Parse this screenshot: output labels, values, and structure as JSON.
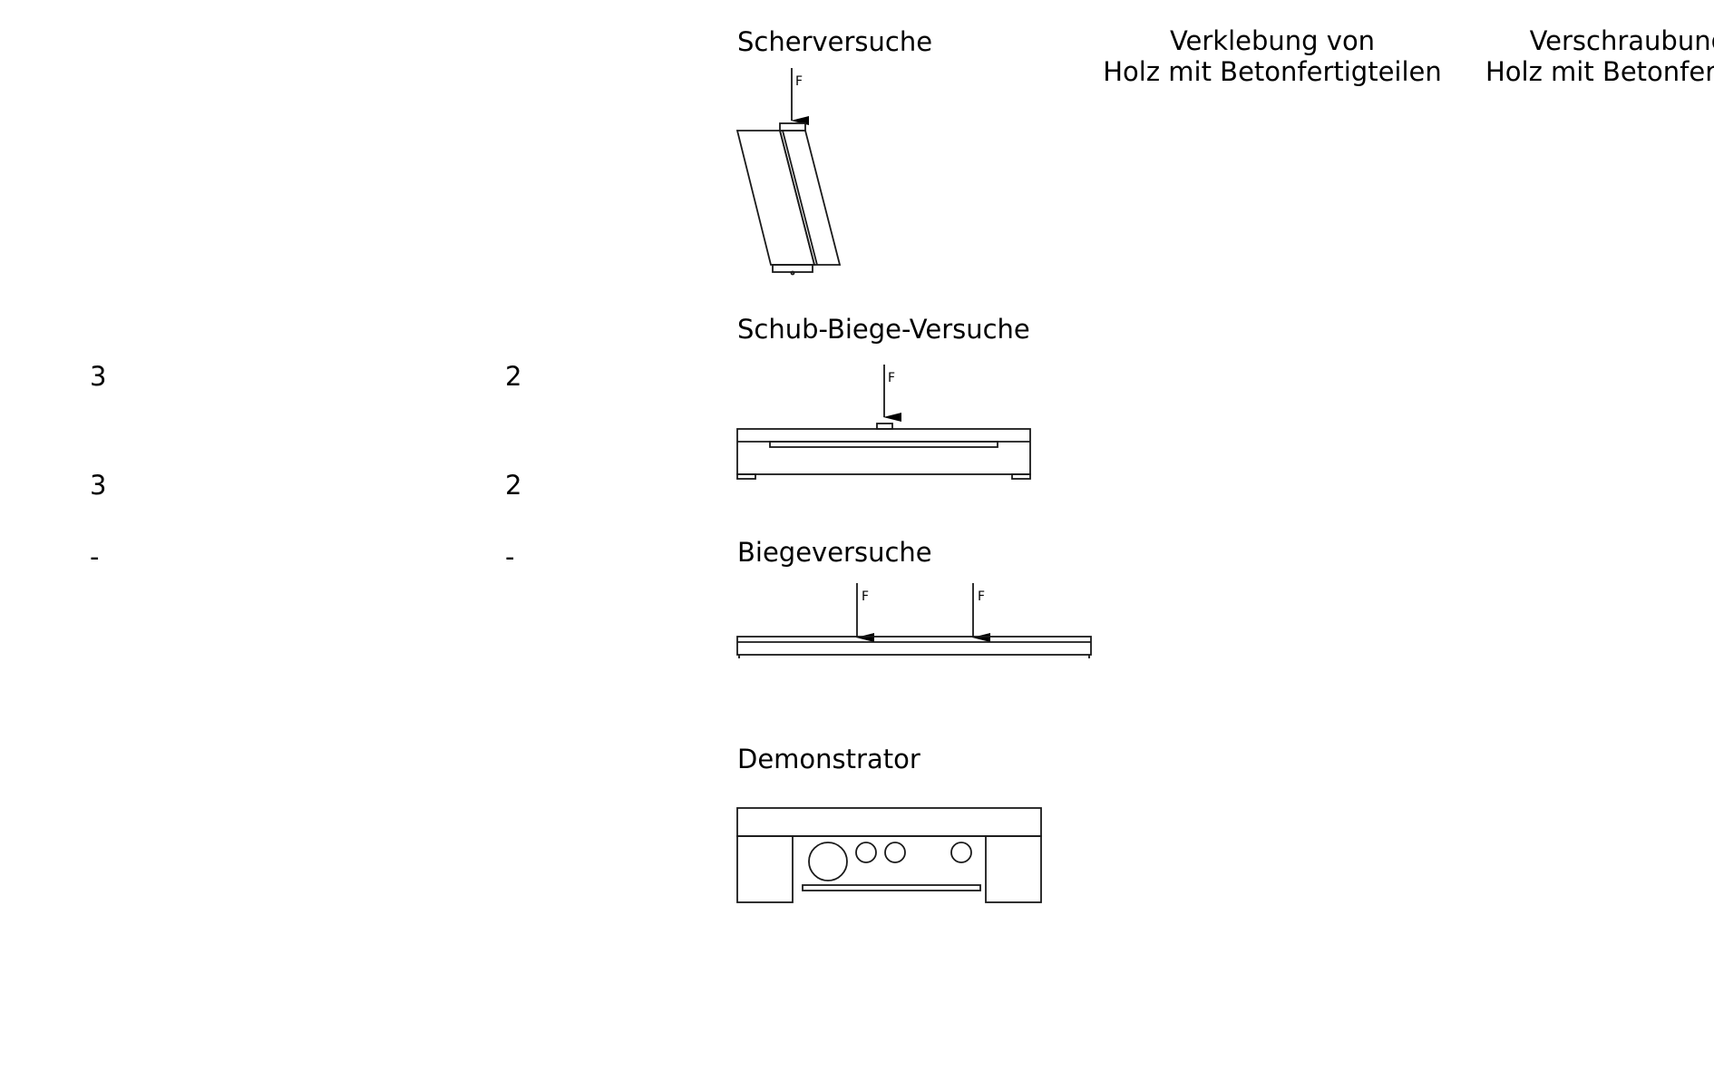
{
  "headers": {
    "glue_line1": "Verklebung von",
    "glue_line2": "Holz mit Betonfertigteilen",
    "screw_line1": "Verschraubung",
    "screw_line2": "Holz mit Betonferti"
  },
  "tests": {
    "shear": "Scherversuche",
    "shear_bending": "Schub-Biege-Versuche",
    "bending": "Biegeversuche",
    "demonstrator": "Demonstrator"
  },
  "load_symbol": "F",
  "counts": {
    "row1_col1": "3",
    "row1_col2": "2",
    "row2_col1": "3",
    "row2_col2": "2",
    "row3_col1": "-",
    "row3_col2": "-"
  }
}
